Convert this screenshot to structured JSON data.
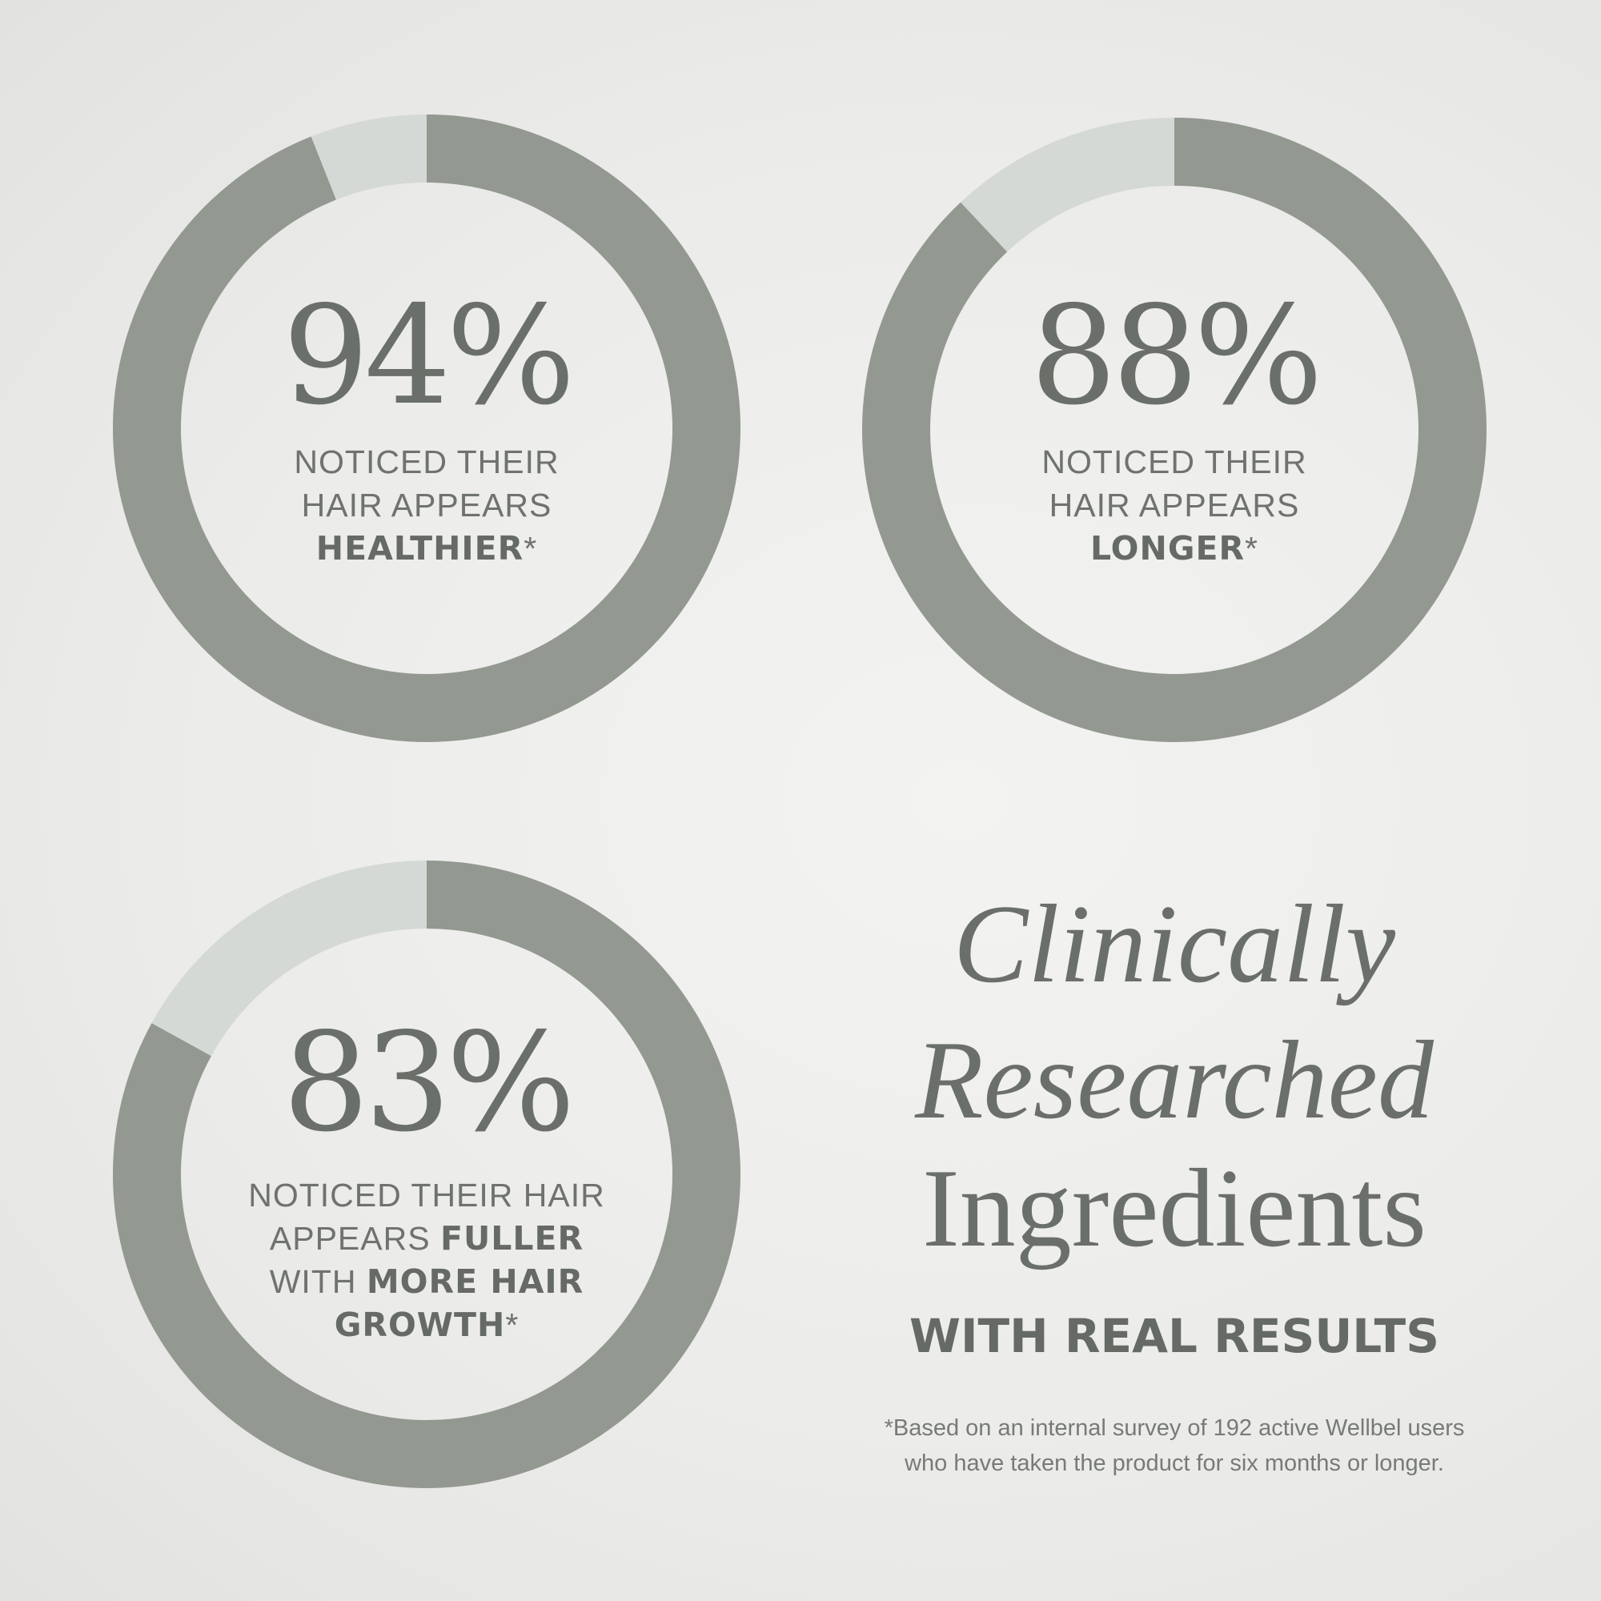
{
  "colors": {
    "filled": "#939891",
    "remaining": "#d5d9d5",
    "background": "#ededeb"
  },
  "chart_data": [
    {
      "type": "pie",
      "variant": "donut",
      "value": 94,
      "label": "94%",
      "caption": [
        "NOTICED THEIR",
        "HAIR APPEARS"
      ],
      "caption_bold": "HEALTHIER",
      "caption_suffix": "*"
    },
    {
      "type": "pie",
      "variant": "donut",
      "value": 88,
      "label": "88%",
      "caption": [
        "NOTICED THEIR",
        "HAIR APPEARS"
      ],
      "caption_bold": "LONGER",
      "caption_suffix": "*"
    },
    {
      "type": "pie",
      "variant": "donut",
      "value": 83,
      "label": "83%",
      "caption_lines": {
        "l1": "NOTICED THEIR HAIR",
        "l2a": "APPEARS ",
        "l2b": "FULLER",
        "l3a": "WITH ",
        "l3b": "MORE HAIR",
        "l4b": "GROWTH",
        "l4s": "*"
      }
    }
  ],
  "headline": {
    "line1": "Clinically",
    "line2": "Researched",
    "line3": "Ingredients",
    "sub": "WITH REAL RESULTS"
  },
  "footnote": {
    "line1": "*Based on an internal survey of 192 active Wellbel users",
    "line2": "who have taken the product for six months or longer."
  }
}
